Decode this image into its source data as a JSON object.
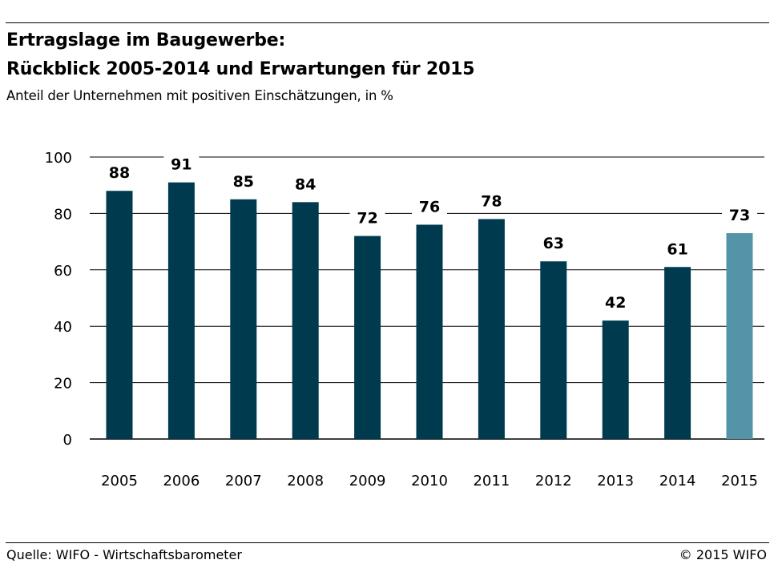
{
  "header": {
    "title_line_1": "Ertragslage im Baugewerbe:",
    "title_line_2": "Rückblick 2005-2014 und Erwartungen für 2015",
    "subtitle": "Anteil der Unternehmen mit positiven Einschätzungen, in %"
  },
  "footer": {
    "source": "Quelle: WIFO - Wirtschaftsbarometer",
    "copyright": "© 2015 WIFO"
  },
  "colors": {
    "bar_actual": "#003a4f",
    "bar_expected": "#5593a8",
    "grid": "#000000",
    "text": "#000000"
  },
  "chart_data": {
    "type": "bar",
    "categories": [
      "2005",
      "2006",
      "2007",
      "2008",
      "2009",
      "2010",
      "2011",
      "2012",
      "2013",
      "2014",
      "2015"
    ],
    "values": [
      88,
      91,
      85,
      84,
      72,
      76,
      78,
      63,
      42,
      61,
      73
    ],
    "data_labels": [
      "88",
      "91",
      "85",
      "84",
      "72",
      "76",
      "78",
      "63",
      "42",
      "61",
      "73"
    ],
    "highlighted_category": "2015",
    "y_ticks": [
      0,
      20,
      40,
      60,
      80,
      100
    ],
    "y_tick_labels": [
      "0",
      "20",
      "40",
      "60",
      "80",
      "100"
    ],
    "ylim": [
      0,
      100
    ],
    "grid": true,
    "legend": "none"
  }
}
